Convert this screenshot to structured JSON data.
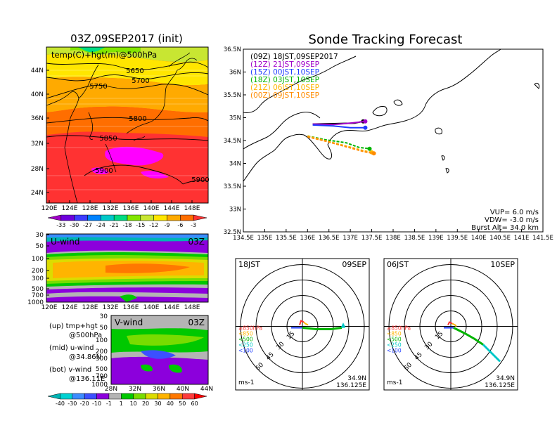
{
  "main_title": "Sonde Tracking Forecast",
  "init_title": "03Z,09SEP2017 (init)",
  "top_map": {
    "label": "temp(C)+hgt(m)@500hPa",
    "lat_ticks": [
      "44N",
      "40N",
      "36N",
      "32N",
      "28N",
      "24N"
    ],
    "lon_ticks": [
      "120E",
      "124E",
      "128E",
      "132E",
      "136E",
      "140E",
      "144E",
      "148E"
    ],
    "contour_labels": [
      "5650",
      "5700",
      "5750",
      "5800",
      "5850",
      "5900",
      "5900"
    ]
  },
  "colorbar_temp": {
    "labels": [
      "-33",
      "-30",
      "-27",
      "-24",
      "-21",
      "-18",
      "-15",
      "-12",
      "-9",
      "-6",
      "-3"
    ],
    "colors": [
      "#a000c8",
      "#6e00dc",
      "#3c3cff",
      "#0082ff",
      "#00c8c8",
      "#00dc82",
      "#82e600",
      "#c8e632",
      "#ffe600",
      "#ffaa00",
      "#ff6e00",
      "#ff3232"
    ]
  },
  "uwind": {
    "label": "U-wind",
    "time": "03Z",
    "p_ticks": [
      "30",
      "50",
      "100",
      "200",
      "300",
      "500",
      "700",
      "1000"
    ],
    "lon_ticks": [
      "120E",
      "124E",
      "128E",
      "132E",
      "136E",
      "140E",
      "144E",
      "148E"
    ]
  },
  "vwind": {
    "label": "V-wind",
    "time": "03Z",
    "p_ticks": [
      "30",
      "50",
      "100",
      "200",
      "300",
      "500",
      "700",
      "1000"
    ],
    "lat_ticks": [
      "28N",
      "32N",
      "36N",
      "40N",
      "44N"
    ]
  },
  "notes": {
    "up1": "(up)  tmp+hgt",
    "up2": "@500hPa",
    "mid1": "(mid) u-wind",
    "mid2": "@34.86N",
    "bot1": "(bot) v-wind",
    "bot2": "@136.11E"
  },
  "colorbar_wind": {
    "labels": [
      "-40",
      "-30",
      "-20",
      "-10",
      "-1",
      "1",
      "10",
      "20",
      "30",
      "40",
      "50",
      "60"
    ],
    "colors": [
      "#00b4b4",
      "#00d2d2",
      "#3c8cff",
      "#3c50ff",
      "#8c00dc",
      "#b4b4b4",
      "#00c800",
      "#78dc00",
      "#dcdc00",
      "#ffb400",
      "#ff7800",
      "#ff3c3c",
      "#ff0000"
    ]
  },
  "track_map": {
    "lat_ticks": [
      "36.5N",
      "36N",
      "35.5N",
      "35N",
      "34.5N",
      "34N",
      "33.5N",
      "33N",
      "32.5N"
    ],
    "lon_ticks": [
      "134.5E",
      "135E",
      "135.5E",
      "136E",
      "136.5E",
      "137E",
      "137.5E",
      "138E",
      "138.5E",
      "139E",
      "139.5E",
      "140E",
      "140.5E",
      "141E",
      "141.5E"
    ],
    "legend": [
      {
        "text": "(09Z)  18JST,09SEP2017",
        "color": "#000000"
      },
      {
        "text": "(12Z)  21JST,09SEP",
        "color": "#a000c8"
      },
      {
        "text": "(15Z)  00JST,10SEP",
        "color": "#1e3cff"
      },
      {
        "text": "(18Z)  03JST,10SEP",
        "color": "#00b400"
      },
      {
        "text": "(21Z)  06JST,10SEP",
        "color": "#ffb400"
      },
      {
        "text": "(00Z)  09JST,10SEP",
        "color": "#ff8c00"
      }
    ],
    "vup": "VUP=  6.0 m/s",
    "vdw": "VDW= -3.0 m/s",
    "burst": "Burst Alt= 34.0 km"
  },
  "hodo_left": {
    "jst": "18JST",
    "date": "09SEP",
    "rings": [
      "15",
      "30",
      "45",
      "60"
    ],
    "legend": [
      "≥850hPa",
      "<850",
      "<500",
      "<250",
      "<100"
    ],
    "unit": "ms-1",
    "lat": "34.9N",
    "lon": "136.125E"
  },
  "hodo_right": {
    "jst": "06JST",
    "date": "10SEP",
    "rings": [
      "15",
      "30",
      "45",
      "60"
    ],
    "legend": [
      "≥850hPa",
      "<850",
      "<500",
      "<250",
      "<100"
    ],
    "unit": "ms-1",
    "lat": "34.9N",
    "lon": "136.125E"
  },
  "hodo_legend_colors": [
    "#ff3232",
    "#ffb400",
    "#00b400",
    "#00c8c8",
    "#1e3cff"
  ],
  "chart_data": {
    "type": "line",
    "title": "Sonde Tracking Forecast",
    "xlabel": "",
    "ylabel": "",
    "xlim": [
      134.5,
      141.5
    ],
    "ylim": [
      32.5,
      36.5
    ],
    "series": [
      {
        "name": "(09Z)  18JST,09SEP2017",
        "x": [
          136.12,
          136.6,
          137.1,
          137.3
        ],
        "y": [
          34.86,
          34.87,
          34.88,
          34.92
        ]
      },
      {
        "name": "(12Z)  21JST,09SEP",
        "x": [
          136.12,
          136.6,
          137.0,
          137.35
        ],
        "y": [
          34.86,
          34.85,
          34.88,
          34.92
        ]
      },
      {
        "name": "(15Z)  00JST,10SEP",
        "x": [
          136.12,
          136.6,
          137.0,
          137.35
        ],
        "y": [
          34.84,
          34.82,
          34.78,
          34.78
        ]
      },
      {
        "name": "(18Z)  03JST,10SEP",
        "x": [
          136.0,
          136.4,
          136.9,
          137.2,
          137.45
        ],
        "y": [
          34.6,
          34.52,
          34.45,
          34.35,
          34.32
        ]
      },
      {
        "name": "(21Z)  06JST,10SEP",
        "x": [
          136.0,
          136.4,
          136.9,
          137.3,
          137.5
        ],
        "y": [
          34.6,
          34.5,
          34.38,
          34.28,
          34.24
        ]
      },
      {
        "name": "(00Z)  09JST,10SEP",
        "x": [
          136.0,
          136.45,
          136.95,
          137.35,
          137.55
        ],
        "y": [
          34.58,
          34.48,
          34.35,
          34.25,
          34.22
        ]
      }
    ]
  }
}
